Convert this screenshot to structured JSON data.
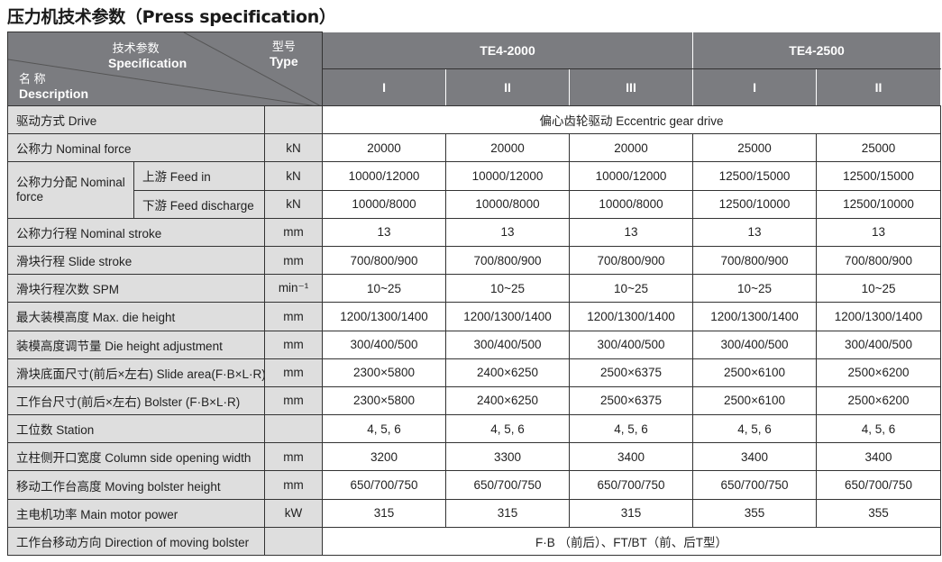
{
  "title": "压力机技术参数（Press specification）",
  "header": {
    "spec_cn": "技术参数",
    "spec_en": "Specification",
    "type_cn": "型号",
    "type_en": "Type",
    "desc_cn": "名 称",
    "desc_en": "Description",
    "models": [
      "TE4-2000",
      "TE4-2500"
    ],
    "variants": [
      "I",
      "II",
      "III",
      "I",
      "II"
    ]
  },
  "rows": [
    {
      "label": "驱动方式  Drive",
      "unit": "",
      "merged": "偏心齿轮驱动   Eccentric gear drive"
    },
    {
      "label": "公称力  Nominal force",
      "unit": "kN",
      "values": [
        "20000",
        "20000",
        "20000",
        "25000",
        "25000"
      ]
    },
    {
      "group": "公称力分配 Nominal force",
      "label": "上游  Feed in",
      "unit": "kN",
      "values": [
        "10000/12000",
        "10000/12000",
        "10000/12000",
        "12500/15000",
        "12500/15000"
      ]
    },
    {
      "label": "下游  Feed discharge",
      "unit": "kN",
      "values": [
        "10000/8000",
        "10000/8000",
        "10000/8000",
        "12500/10000",
        "12500/10000"
      ]
    },
    {
      "label": "公称力行程  Nominal stroke",
      "unit": "mm",
      "values": [
        "13",
        "13",
        "13",
        "13",
        "13"
      ]
    },
    {
      "label": "滑块行程  Slide stroke",
      "unit": "mm",
      "values": [
        "700/800/900",
        "700/800/900",
        "700/800/900",
        "700/800/900",
        "700/800/900"
      ]
    },
    {
      "label": "滑块行程次数  SPM",
      "unit": "min⁻¹",
      "values": [
        "10~25",
        "10~25",
        "10~25",
        "10~25",
        "10~25"
      ]
    },
    {
      "label": "最大装模高度  Max. die height",
      "unit": "mm",
      "values": [
        "1200/1300/1400",
        "1200/1300/1400",
        "1200/1300/1400",
        "1200/1300/1400",
        "1200/1300/1400"
      ]
    },
    {
      "label": "装模高度调节量  Die height adjustment",
      "unit": "mm",
      "values": [
        "300/400/500",
        "300/400/500",
        "300/400/500",
        "300/400/500",
        "300/400/500"
      ]
    },
    {
      "label": "滑块底面尺寸(前后×左右)  Slide area(F·B×L·R)",
      "unit": "mm",
      "values": [
        "2300×5800",
        "2400×6250",
        "2500×6375",
        "2500×6100",
        "2500×6200"
      ]
    },
    {
      "label": "工作台尺寸(前后×左右)   Bolster (F·B×L·R)",
      "unit": "mm",
      "values": [
        "2300×5800",
        "2400×6250",
        "2500×6375",
        "2500×6100",
        "2500×6200"
      ]
    },
    {
      "label": "工位数  Station",
      "unit": "",
      "values": [
        "4, 5, 6",
        "4, 5, 6",
        "4, 5, 6",
        "4, 5, 6",
        "4, 5, 6"
      ]
    },
    {
      "label": "立柱侧开口宽度  Column side opening width",
      "unit": "mm",
      "values": [
        "3200",
        "3300",
        "3400",
        "3400",
        "3400"
      ]
    },
    {
      "label": "移动工作台高度  Moving bolster height",
      "unit": "mm",
      "values": [
        "650/700/750",
        "650/700/750",
        "650/700/750",
        "650/700/750",
        "650/700/750"
      ]
    },
    {
      "label": "主电机功率  Main motor power",
      "unit": "kW",
      "values": [
        "315",
        "315",
        "315",
        "355",
        "355"
      ]
    },
    {
      "label": "工作台移动方向  Direction of moving bolster",
      "unit": "",
      "merged": "F·B （前后）、FT/BT（前、后T型）"
    }
  ]
}
